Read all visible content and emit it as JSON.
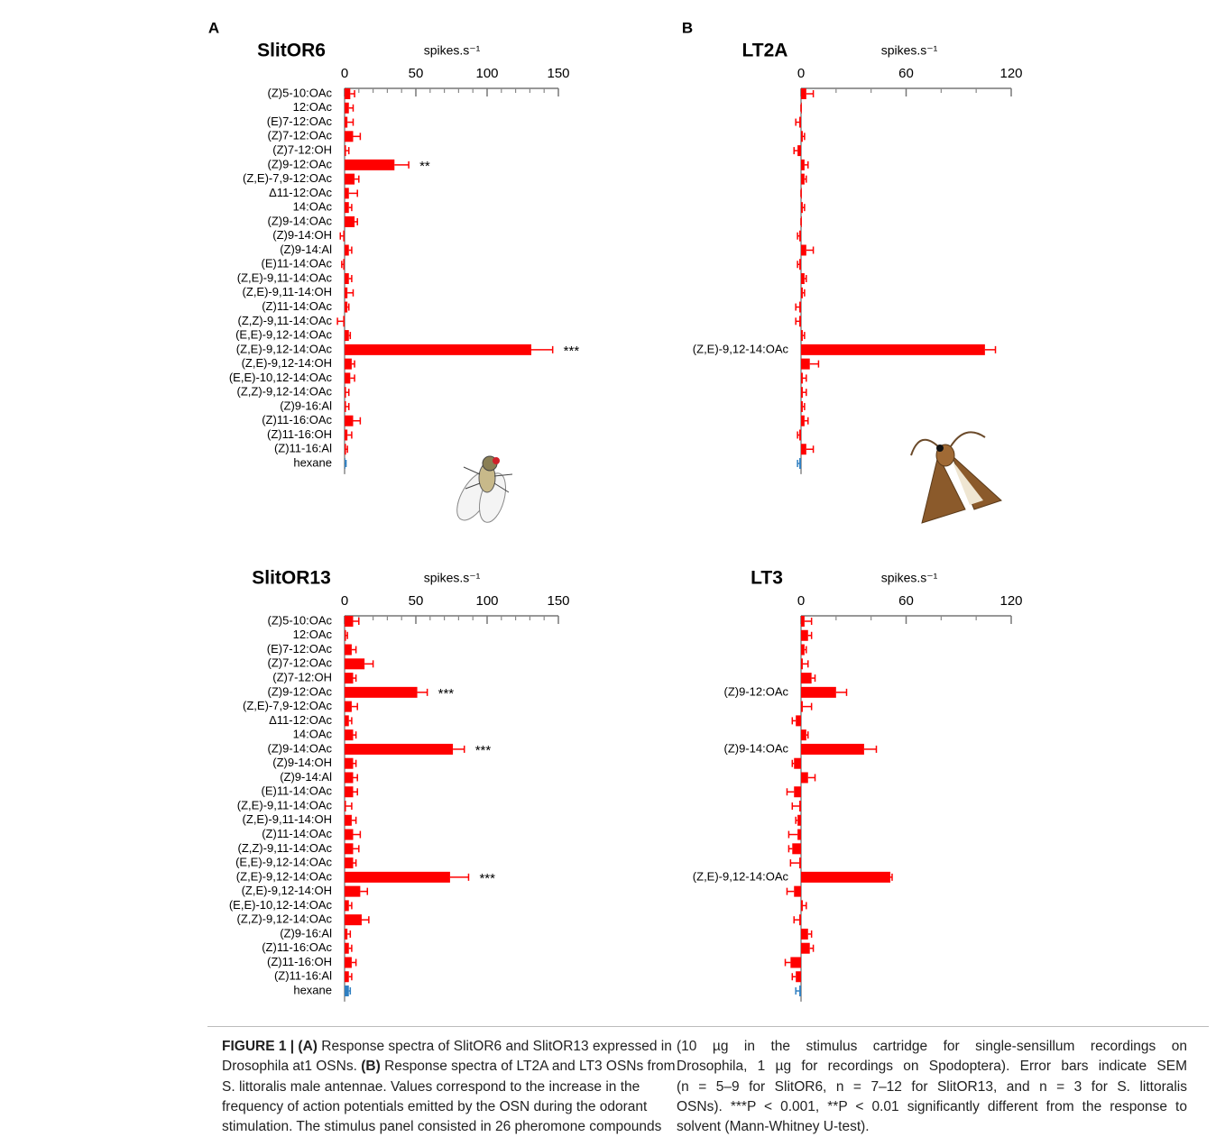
{
  "chart_data": [
    {
      "type": "bar",
      "orientation": "horizontal",
      "panel": "A",
      "title": "SlitOR6",
      "xlabel": "spikes.s⁻¹",
      "categories": [
        "(Z)5-10:OAc",
        "12:OAc",
        "(E)7-12:OAc",
        "(Z)7-12:OAc",
        "(Z)7-12:OH",
        "(Z)9-12:OAc",
        "(Z,E)-7,9-12:OAc",
        "Δ11-12:OAc",
        "14:OAc",
        "(Z)9-14:OAc",
        "(Z)9-14:OH",
        "(Z)9-14:Al",
        "(E)11-14:OAc",
        "(Z,E)-9,11-14:OAc",
        "(Z,E)-9,11-14:OH",
        "(Z)11-14:OAc",
        "(Z,Z)-9,11-14:OAc",
        "(E,E)-9,12-14:OAc",
        "(Z,E)-9,12-14:OAc",
        "(Z,E)-9,12-14:OH",
        "(E,E)-10,12-14:OAc",
        "(Z,Z)-9,12-14:OAc",
        "(Z)9-16:Al",
        "(Z)11-16:OAc",
        "(Z)11-16:OH",
        "(Z)11-16:Al",
        "hexane"
      ],
      "values": [
        4,
        3,
        2,
        6,
        1,
        35,
        7,
        3,
        3,
        7,
        -1,
        3,
        -1,
        3,
        2,
        2,
        -1,
        3,
        131,
        5,
        4,
        1,
        1,
        6,
        2,
        1,
        0
      ],
      "errors": [
        3,
        3,
        4,
        5,
        2,
        10,
        3,
        6,
        2,
        2,
        2,
        2,
        1,
        2,
        4,
        1,
        4,
        1,
        15,
        2,
        3,
        2,
        2,
        5,
        3,
        1,
        1
      ],
      "significance": [
        null,
        null,
        null,
        null,
        null,
        "**",
        null,
        null,
        null,
        null,
        null,
        null,
        null,
        null,
        null,
        null,
        null,
        null,
        "***",
        null,
        null,
        null,
        null,
        null,
        null,
        null,
        null
      ],
      "color": "#ff0000",
      "control_color": "#2f7fc1",
      "xlim": [
        0,
        150
      ],
      "xticks": [
        0,
        50,
        100,
        150
      ],
      "xminorticks": [
        10,
        20,
        30,
        40,
        60,
        70,
        80,
        90,
        110,
        120,
        130,
        140
      ]
    },
    {
      "type": "bar",
      "orientation": "horizontal",
      "panel": "B",
      "title": "LT2A",
      "xlabel": "spikes.s⁻¹",
      "categories": [
        null,
        null,
        null,
        null,
        null,
        null,
        null,
        null,
        null,
        null,
        null,
        null,
        null,
        null,
        null,
        null,
        null,
        null,
        "(Z,E)-9,12-14:OAc",
        null,
        null,
        null,
        null,
        null,
        null,
        null,
        null
      ],
      "values": [
        3,
        0,
        -1,
        1,
        -2,
        2,
        2,
        0,
        1,
        0,
        -1,
        3,
        -1,
        2,
        1,
        -1,
        -1,
        1,
        105,
        5,
        1,
        1,
        1,
        2,
        -1,
        3,
        -1
      ],
      "errors": [
        4,
        0,
        2,
        1,
        2,
        2,
        1,
        0,
        1,
        0,
        1,
        4,
        1,
        1,
        1,
        2,
        2,
        1,
        6,
        5,
        2,
        2,
        1,
        2,
        1,
        4,
        1
      ],
      "color": "#ff0000",
      "control_color": "#2f7fc1",
      "xlim": [
        0,
        120
      ],
      "xticks": [
        0,
        60,
        120
      ],
      "xminorticks": [
        20,
        40,
        80,
        100
      ]
    },
    {
      "type": "bar",
      "orientation": "horizontal",
      "title": "SlitOR13",
      "xlabel": "spikes.s⁻¹",
      "categories": [
        "(Z)5-10:OAc",
        "12:OAc",
        "(E)7-12:OAc",
        "(Z)7-12:OAc",
        "(Z)7-12:OH",
        "(Z)9-12:OAc",
        "(Z,E)-7,9-12:OAc",
        "Δ11-12:OAc",
        "14:OAc",
        "(Z)9-14:OAc",
        "(Z)9-14:OH",
        "(Z)9-14:Al",
        "(E)11-14:OAc",
        "(Z,E)-9,11-14:OAc",
        "(Z,E)-9,11-14:OH",
        "(Z)11-14:OAc",
        "(Z,Z)-9,11-14:OAc",
        "(E,E)-9,12-14:OAc",
        "(Z,E)-9,12-14:OAc",
        "(Z,E)-9,12-14:OH",
        "(E,E)-10,12-14:OAc",
        "(Z,Z)-9,12-14:OAc",
        "(Z)9-16:Al",
        "(Z)11-16:OAc",
        "(Z)11-16:OH",
        "(Z)11-16:Al",
        "hexane"
      ],
      "values": [
        6,
        1,
        5,
        14,
        6,
        51,
        5,
        3,
        6,
        76,
        6,
        6,
        6,
        1,
        5,
        6,
        6,
        6,
        74,
        11,
        3,
        12,
        2,
        3,
        5,
        3,
        3
      ],
      "errors": [
        4,
        1,
        3,
        6,
        2,
        7,
        4,
        2,
        2,
        8,
        2,
        3,
        3,
        4,
        3,
        5,
        4,
        2,
        13,
        5,
        2,
        5,
        2,
        2,
        3,
        2,
        1
      ],
      "significance": [
        null,
        null,
        null,
        null,
        null,
        "***",
        null,
        null,
        null,
        "***",
        null,
        null,
        null,
        null,
        null,
        null,
        null,
        null,
        "***",
        null,
        null,
        null,
        null,
        null,
        null,
        null,
        null
      ],
      "color": "#ff0000",
      "control_color": "#2f7fc1",
      "xlim": [
        0,
        150
      ],
      "xticks": [
        0,
        50,
        100,
        150
      ],
      "xminorticks": [
        10,
        20,
        30,
        40,
        60,
        70,
        80,
        90,
        110,
        120,
        130,
        140
      ]
    },
    {
      "type": "bar",
      "orientation": "horizontal",
      "title": "LT3",
      "xlabel": "spikes.s⁻¹",
      "categories": [
        null,
        null,
        null,
        null,
        null,
        "(Z)9-12:OAc",
        null,
        null,
        null,
        "(Z)9-14:OAc",
        null,
        null,
        null,
        null,
        null,
        null,
        null,
        null,
        "(Z,E)-9,12-14:OAc",
        null,
        null,
        null,
        null,
        null,
        null,
        null,
        null
      ],
      "values": [
        2,
        4,
        2,
        1,
        6,
        20,
        1,
        -3,
        3,
        36,
        -4,
        4,
        -4,
        -1,
        -2,
        -2,
        -5,
        -1,
        51,
        -4,
        1,
        -1,
        4,
        5,
        -6,
        -3,
        -1
      ],
      "errors": [
        4,
        2,
        1,
        3,
        2,
        6,
        5,
        2,
        1,
        7,
        1,
        4,
        4,
        4,
        1,
        5,
        2,
        5,
        1,
        4,
        2,
        3,
        2,
        2,
        3,
        2,
        2
      ],
      "color": "#ff0000",
      "control_color": "#2f7fc1",
      "xlim": [
        0,
        120
      ],
      "xticks": [
        0,
        60,
        120
      ],
      "xminorticks": [
        20,
        40,
        80,
        100
      ]
    }
  ],
  "caption": {
    "left": [
      [
        "FIGURE 1 | (A)",
        "Response spectra of SlitOR6 and SlitOR13 expressed in"
      ],
      [
        "Drosophila at1 OSNs.",
        "(B)",
        "Response spectra of LT2A and LT3 OSNs from"
      ],
      [
        "S. littoralis male antennae. Values correspond to the increase in the"
      ],
      [
        "frequency of action potentials emitted by the OSN during the odorant"
      ],
      [
        "stimulation. The stimulus panel consisted in 26 pheromone compounds"
      ]
    ],
    "right": [
      [
        "(10 µg in the stimulus cartridge for single-sensillum recordings on"
      ],
      [
        "Drosophila, 1 µg for recordings on Spodoptera). Error bars indicate SEM"
      ],
      [
        "(n = 5–9 for SlitOR6, n = 7–12 for SlitOR13, and n = 3 for S. littoralis"
      ],
      [
        "OSNs). ***P < 0.001, **P < 0.01 significantly different from the response to"
      ],
      [
        "solvent (Mann-Whitney U-test)."
      ]
    ]
  }
}
